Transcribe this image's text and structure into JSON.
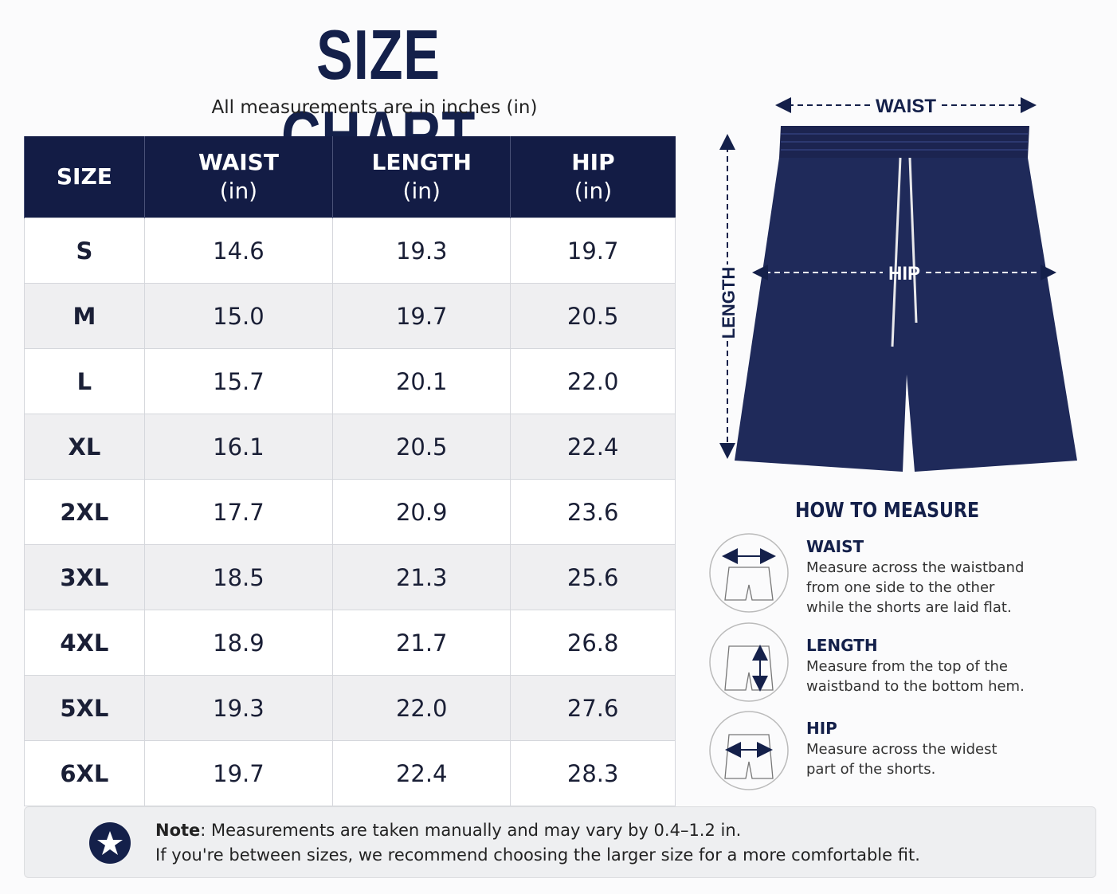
{
  "header": {
    "title": "SIZE CHART",
    "subtitle": "All measurements are in inches (in)"
  },
  "table": {
    "columns": [
      {
        "name": "SIZE"
      },
      {
        "name": "WAIST",
        "unit": "(in)"
      },
      {
        "name": "LENGTH",
        "unit": "(in)"
      },
      {
        "name": "HIP",
        "unit": "(in)"
      }
    ],
    "rows": [
      [
        "S",
        "14.6",
        "19.3",
        "19.7"
      ],
      [
        "M",
        "15.0",
        "19.7",
        "20.5"
      ],
      [
        "L",
        "15.7",
        "20.1",
        "22.0"
      ],
      [
        "XL",
        "16.1",
        "20.5",
        "22.4"
      ],
      [
        "2XL",
        "17.7",
        "20.9",
        "23.6"
      ],
      [
        "3XL",
        "18.5",
        "21.3",
        "25.6"
      ],
      [
        "4XL",
        "18.9",
        "21.7",
        "26.8"
      ],
      [
        "5XL",
        "19.3",
        "22.0",
        "27.6"
      ],
      [
        "6XL",
        "19.7",
        "22.4",
        "28.3"
      ]
    ]
  },
  "diagram": {
    "waist": "WAIST",
    "hip": "HIP",
    "length": "LENGTH"
  },
  "how_to_measure": {
    "title": "HOW TO MEASURE",
    "items": [
      {
        "label": "WAIST",
        "lines": [
          "Measure across the waistband",
          "from one side to the other",
          "while the shorts are laid flat."
        ]
      },
      {
        "label": "LENGTH",
        "lines": [
          "Measure from the top of the",
          "waistband to the bottom hem."
        ]
      },
      {
        "label": "HIP",
        "lines": [
          "Measure across the widest",
          "part of the shorts."
        ]
      }
    ]
  },
  "note": {
    "label": "Note",
    "line1": ": Measurements are taken manually and may vary by 0.4–1.2 in.",
    "line2": "If you're between sizes, we recommend choosing the larger size for a more comfortable fit."
  }
}
